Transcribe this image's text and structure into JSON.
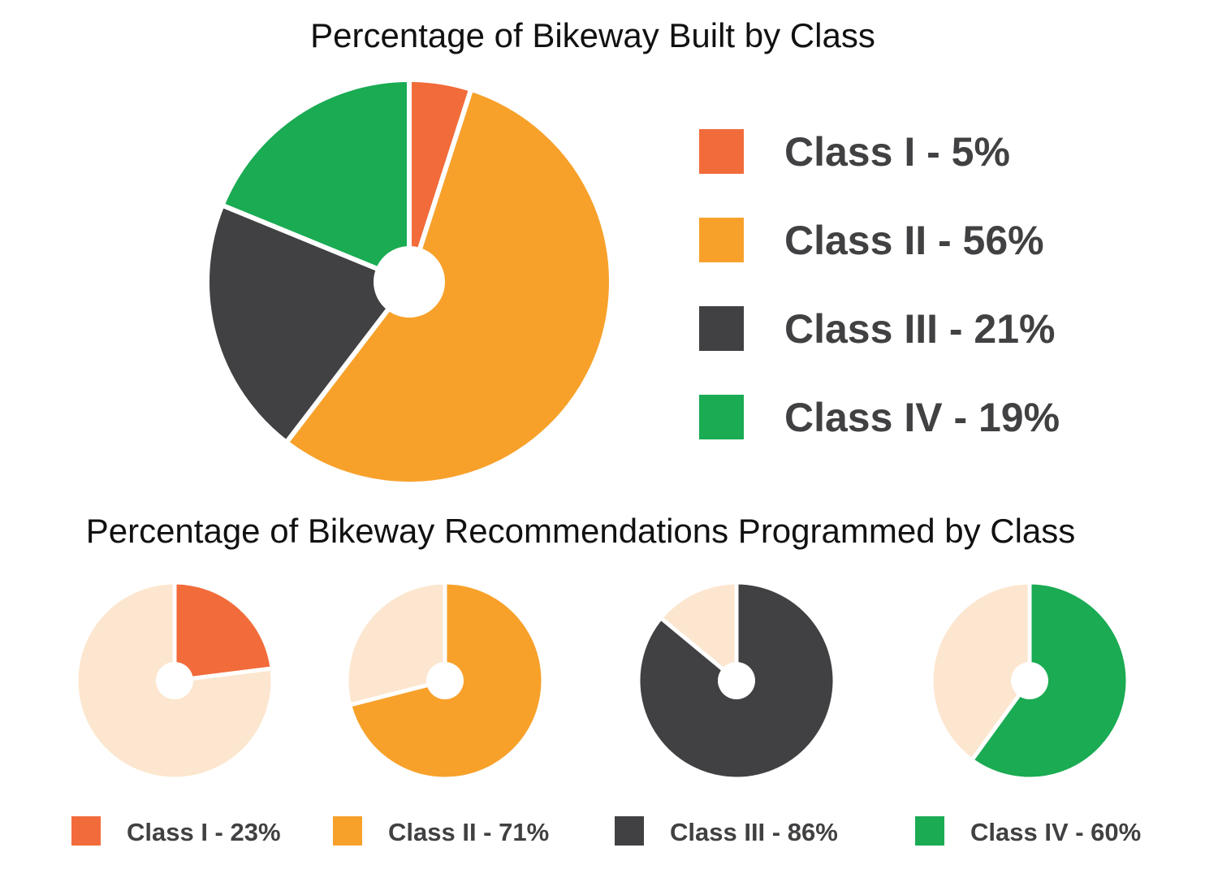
{
  "chart_data": [
    {
      "type": "pie",
      "title": "Percentage of Bikeway Built by Class",
      "categories": [
        "Class I",
        "Class II",
        "Class III",
        "Class IV"
      ],
      "values": [
        5,
        56,
        21,
        19
      ],
      "colors": [
        "#f26b3a",
        "#f7a12b",
        "#414042",
        "#1aab53"
      ],
      "legend": {
        "placement": "right",
        "labels": [
          "Class I - 5%",
          "Class II - 56%",
          "Class III - 21%",
          "Class IV - 19%"
        ]
      }
    },
    {
      "type": "pie",
      "title": "Percentage of Bikeway Recommendations Programmed by Class",
      "remainder_color": "#fde6cf",
      "legend": {
        "placement": "bottom"
      },
      "charts": [
        {
          "category": "Class I",
          "value": 23,
          "color": "#f26b3a",
          "label": "Class I - 23%"
        },
        {
          "category": "Class II",
          "value": 71,
          "color": "#f7a12b",
          "label": "Class II - 71%"
        },
        {
          "category": "Class III",
          "value": 86,
          "color": "#414042",
          "label": "Class III - 86%"
        },
        {
          "category": "Class IV",
          "value": 60,
          "color": "#1aab53",
          "label": "Class IV - 60%"
        }
      ]
    }
  ]
}
